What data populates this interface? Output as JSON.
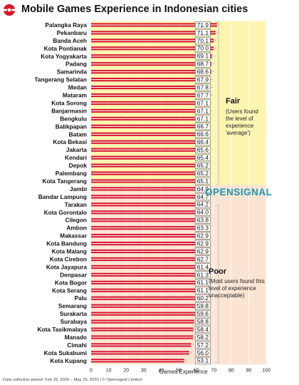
{
  "title": "Mobile Games Experience in Indonesian cities",
  "footer": "Data collection period: Feb 29, 2020 – May 29, 2020 | © Opensignal Limited",
  "brand": "OPENSIGNAL",
  "colors": {
    "bar": "#d8172b",
    "fair_bg": "#fbf5b0",
    "poor_bg": "#fce4d3",
    "bracket": "#b9b9b9",
    "brand": "#1d96ad"
  },
  "groups": {
    "fair": {
      "title": "Fair",
      "description": "(Users found the level of experience 'average')"
    },
    "poor": {
      "title": "Poor",
      "description": "(Most users found this level of experience unacceptable)"
    }
  },
  "chart_data": {
    "type": "bar",
    "orientation": "horizontal",
    "xlabel": "Games Experience",
    "xlim": [
      0,
      100
    ],
    "xticks": [
      0,
      10,
      20,
      30,
      40,
      50,
      60,
      70,
      80,
      90,
      100
    ],
    "categories": [
      "Palangka Raya",
      "Pekanbaru",
      "Banda Aceh",
      "Kota Pontianak",
      "Kota Yogyakarta",
      "Padang",
      "Samarinda",
      "Tangerang Selatan",
      "Medan",
      "Mataram",
      "Kota Sorong",
      "Banjarmasin",
      "Bengkulu",
      "Balikpapan",
      "Batam",
      "Kota Bekasi",
      "Jakarta",
      "Kendari",
      "Depok",
      "Palembang",
      "Kota Tangerang",
      "Jambi",
      "Bandar Lampung",
      "Tarakan",
      "Kota Gorontalo",
      "Cilegon",
      "Ambon",
      "Makassar",
      "Kota Bandung",
      "Kota Malang",
      "Kota Cirebon",
      "Kota Jayapura",
      "Denpasar",
      "Kota Bogor",
      "Kota Serang",
      "Palu",
      "Semarang",
      "Surakarta",
      "Surabaya",
      "Kota Tasikmalaya",
      "Manado",
      "Cimahi",
      "Kota Sukabumi",
      "Kota Kupang"
    ],
    "values": [
      71.9,
      71.1,
      70.1,
      70.0,
      69.1,
      68.7,
      68.6,
      67.9,
      67.8,
      67.7,
      67.1,
      67.1,
      67.1,
      66.7,
      66.6,
      66.4,
      65.6,
      65.4,
      65.2,
      65.2,
      65.1,
      64.9,
      64.7,
      64.2,
      64.0,
      63.8,
      63.3,
      62.9,
      62.9,
      62.9,
      62.7,
      61.4,
      61.3,
      61.1,
      61.1,
      60.2,
      59.8,
      59.6,
      58.8,
      58.4,
      58.2,
      57.2,
      56.0,
      53.1
    ],
    "value_labels": [
      "71.9",
      "71.1",
      "70.1",
      "70.0",
      "69.1",
      "68.7",
      "68.6",
      "67.9",
      "67.8",
      "67.7",
      "67.1",
      "67.1",
      "67.1",
      "66.7",
      "66.6",
      "66.4",
      "65.6",
      "65.4",
      "65.2",
      "65.2",
      "65.1",
      "64.9",
      "64.7",
      "64.2",
      "64.0",
      "63.8",
      "63.3",
      "62.9",
      "62.9",
      "62.9",
      "62.7",
      "61.4",
      "61.3",
      "61.1",
      "61.1",
      "60.2",
      "59.8",
      "59.6",
      "58.8",
      "58.4",
      "58.2",
      "57.2",
      "56.0",
      "53.1"
    ],
    "bands": [
      {
        "label": "Fair",
        "range": [
          65,
          75
        ]
      },
      {
        "label": "Poor",
        "range": [
          40,
          65
        ]
      }
    ]
  }
}
